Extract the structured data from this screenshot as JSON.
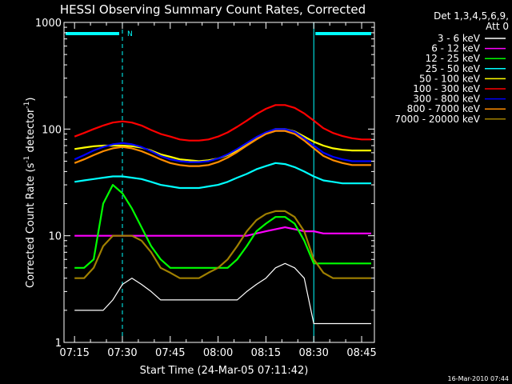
{
  "chart_data": {
    "type": "line",
    "title": "HESSI Observing Summary Count Rates, Corrected",
    "xlabel": "Start Time (24-Mar-05 07:11:42)",
    "ylabel_main": "Corrected Count Rate (s",
    "ylabel_sup1": "-1",
    "ylabel_mid": " detector",
    "ylabel_sup2": "-1",
    "ylabel_end": ")",
    "yscale": "log",
    "ylim": [
      1,
      1000
    ],
    "xlim": [
      "07:11:42",
      "08:49:00"
    ],
    "x_ticks": [
      "07:15",
      "07:30",
      "07:45",
      "08:00",
      "08:15",
      "08:30",
      "08:45"
    ],
    "y_ticks": [
      "1",
      "10",
      "100",
      "1000"
    ],
    "legend_title_1": "Det 1,3,4,5,6,9,",
    "legend_title_2": "Att 0",
    "legend_position": "right",
    "footer_date": "16-Mar-2010 07:44",
    "night_marker": "N",
    "series": [
      {
        "name": "3 - 6 keV",
        "color": "#ffffff",
        "x": [
          "07:15",
          "07:18",
          "07:21",
          "07:24",
          "07:27",
          "07:30",
          "07:33",
          "07:36",
          "07:39",
          "07:42",
          "07:45",
          "07:48",
          "07:51",
          "07:54",
          "07:57",
          "08:00",
          "08:03",
          "08:06",
          "08:09",
          "08:12",
          "08:15",
          "08:18",
          "08:21",
          "08:24",
          "08:27",
          "08:30",
          "08:33",
          "08:36",
          "08:39",
          "08:42",
          "08:45",
          "08:48"
        ],
        "y": [
          2,
          2,
          2,
          2,
          2.5,
          3.5,
          4,
          3.5,
          3,
          2.5,
          2.5,
          2.5,
          2.5,
          2.5,
          2.5,
          2.5,
          2.5,
          2.5,
          3,
          3.5,
          4,
          5,
          5.5,
          5,
          4,
          1.5,
          1.5,
          1.5,
          1.5,
          1.5,
          1.5,
          1.5
        ]
      },
      {
        "name": "6 - 12 keV",
        "color": "#ff00ff",
        "x": [
          "07:15",
          "07:18",
          "07:21",
          "07:24",
          "07:27",
          "07:30",
          "07:33",
          "07:36",
          "07:39",
          "07:42",
          "07:45",
          "07:48",
          "07:51",
          "07:54",
          "07:57",
          "08:00",
          "08:03",
          "08:06",
          "08:09",
          "08:12",
          "08:15",
          "08:18",
          "08:21",
          "08:24",
          "08:27",
          "08:30",
          "08:33",
          "08:36",
          "08:39",
          "08:42",
          "08:45",
          "08:48"
        ],
        "y": [
          10,
          10,
          10,
          10,
          10,
          10,
          10,
          10,
          10,
          10,
          10,
          10,
          10,
          10,
          10,
          10,
          10,
          10,
          10,
          10.5,
          11,
          11.5,
          12,
          11.5,
          11,
          11,
          10.5,
          10.5,
          10.5,
          10.5,
          10.5,
          10.5
        ]
      },
      {
        "name": "12 - 25 keV",
        "color": "#00ff00",
        "x": [
          "07:15",
          "07:18",
          "07:21",
          "07:24",
          "07:27",
          "07:30",
          "07:33",
          "07:36",
          "07:39",
          "07:42",
          "07:45",
          "07:48",
          "07:51",
          "07:54",
          "07:57",
          "08:00",
          "08:03",
          "08:06",
          "08:09",
          "08:12",
          "08:15",
          "08:18",
          "08:21",
          "08:24",
          "08:27",
          "08:30",
          "08:33",
          "08:36",
          "08:39",
          "08:42",
          "08:45",
          "08:48"
        ],
        "y": [
          5,
          5,
          6,
          20,
          30,
          25,
          18,
          12,
          8,
          6,
          5,
          5,
          5,
          5,
          5,
          5,
          5,
          6,
          8,
          11,
          13,
          15,
          15,
          13,
          9,
          5.5,
          5.5,
          5.5,
          5.5,
          5.5,
          5.5,
          5.5
        ]
      },
      {
        "name": "25 - 50 keV",
        "color": "#00ffff",
        "x": [
          "07:15",
          "07:18",
          "07:21",
          "07:24",
          "07:27",
          "07:30",
          "07:33",
          "07:36",
          "07:39",
          "07:42",
          "07:45",
          "07:48",
          "07:51",
          "07:54",
          "07:57",
          "08:00",
          "08:03",
          "08:06",
          "08:09",
          "08:12",
          "08:15",
          "08:18",
          "08:21",
          "08:24",
          "08:27",
          "08:30",
          "08:33",
          "08:36",
          "08:39",
          "08:42",
          "08:45",
          "08:48"
        ],
        "y": [
          32,
          33,
          34,
          35,
          36,
          36,
          35,
          34,
          32,
          30,
          29,
          28,
          28,
          28,
          29,
          30,
          32,
          35,
          38,
          42,
          45,
          48,
          47,
          44,
          40,
          36,
          33,
          32,
          31,
          31,
          31,
          31
        ]
      },
      {
        "name": "50 - 100 keV",
        "color": "#ffff00",
        "x": [
          "07:15",
          "07:18",
          "07:21",
          "07:24",
          "07:27",
          "07:30",
          "07:33",
          "07:36",
          "07:39",
          "07:42",
          "07:45",
          "07:48",
          "07:51",
          "07:54",
          "07:57",
          "08:00",
          "08:03",
          "08:06",
          "08:09",
          "08:12",
          "08:15",
          "08:18",
          "08:21",
          "08:24",
          "08:27",
          "08:30",
          "08:33",
          "08:36",
          "08:39",
          "08:42",
          "08:45",
          "08:48"
        ],
        "y": [
          65,
          67,
          69,
          70,
          70,
          70,
          69,
          67,
          63,
          58,
          55,
          52,
          51,
          50,
          51,
          53,
          57,
          63,
          72,
          82,
          92,
          100,
          100,
          95,
          85,
          76,
          70,
          66,
          64,
          63,
          63,
          63
        ]
      },
      {
        "name": "100 - 300 keV",
        "color": "#ff0000",
        "x": [
          "07:15",
          "07:18",
          "07:21",
          "07:24",
          "07:27",
          "07:30",
          "07:33",
          "07:36",
          "07:39",
          "07:42",
          "07:45",
          "07:48",
          "07:51",
          "07:54",
          "07:57",
          "08:00",
          "08:03",
          "08:06",
          "08:09",
          "08:12",
          "08:15",
          "08:18",
          "08:21",
          "08:24",
          "08:27",
          "08:30",
          "08:33",
          "08:36",
          "08:39",
          "08:42",
          "08:45",
          "08:48"
        ],
        "y": [
          85,
          92,
          100,
          108,
          115,
          118,
          115,
          108,
          98,
          90,
          85,
          80,
          78,
          78,
          80,
          85,
          93,
          105,
          120,
          138,
          155,
          168,
          168,
          158,
          140,
          120,
          102,
          92,
          86,
          82,
          80,
          80
        ]
      },
      {
        "name": "300 - 800 keV",
        "color": "#0000ff",
        "x": [
          "07:15",
          "07:18",
          "07:21",
          "07:24",
          "07:27",
          "07:30",
          "07:33",
          "07:36",
          "07:39",
          "07:42",
          "07:45",
          "07:48",
          "07:51",
          "07:54",
          "07:57",
          "08:00",
          "08:03",
          "08:06",
          "08:09",
          "08:12",
          "08:15",
          "08:18",
          "08:21",
          "08:24",
          "08:27",
          "08:30",
          "08:33",
          "08:36",
          "08:39",
          "08:42",
          "08:45",
          "08:48"
        ],
        "y": [
          52,
          57,
          63,
          68,
          72,
          74,
          72,
          68,
          62,
          56,
          52,
          50,
          49,
          49,
          50,
          53,
          58,
          65,
          74,
          84,
          93,
          100,
          100,
          94,
          82,
          70,
          60,
          55,
          52,
          50,
          50,
          50
        ]
      },
      {
        "name": "800 - 7000 keV",
        "color": "#ff8c00",
        "x": [
          "07:15",
          "07:18",
          "07:21",
          "07:24",
          "07:27",
          "07:30",
          "07:33",
          "07:36",
          "07:39",
          "07:42",
          "07:45",
          "07:48",
          "07:51",
          "07:54",
          "07:57",
          "08:00",
          "08:03",
          "08:06",
          "08:09",
          "08:12",
          "08:15",
          "08:18",
          "08:21",
          "08:24",
          "08:27",
          "08:30",
          "08:33",
          "08:36",
          "08:39",
          "08:42",
          "08:45",
          "08:48"
        ],
        "y": [
          48,
          52,
          57,
          62,
          66,
          68,
          66,
          62,
          57,
          52,
          48,
          46,
          45,
          45,
          46,
          49,
          54,
          61,
          70,
          80,
          90,
          96,
          96,
          90,
          78,
          66,
          56,
          51,
          48,
          46,
          46,
          46
        ]
      },
      {
        "name": "7000 - 20000 keV",
        "color": "#a08000",
        "x": [
          "07:15",
          "07:18",
          "07:21",
          "07:24",
          "07:27",
          "07:30",
          "07:33",
          "07:36",
          "07:39",
          "07:42",
          "07:45",
          "07:48",
          "07:51",
          "07:54",
          "07:57",
          "08:00",
          "08:03",
          "08:06",
          "08:09",
          "08:12",
          "08:15",
          "08:18",
          "08:21",
          "08:24",
          "08:27",
          "08:30",
          "08:33",
          "08:36",
          "08:39",
          "08:42",
          "08:45",
          "08:48"
        ],
        "y": [
          4,
          4,
          5,
          8,
          10,
          10,
          10,
          9,
          7,
          5,
          4.5,
          4,
          4,
          4,
          4.5,
          5,
          6,
          8,
          11,
          14,
          16,
          17,
          17,
          15,
          11,
          6,
          4.5,
          4,
          4,
          4,
          4,
          4
        ]
      }
    ]
  }
}
